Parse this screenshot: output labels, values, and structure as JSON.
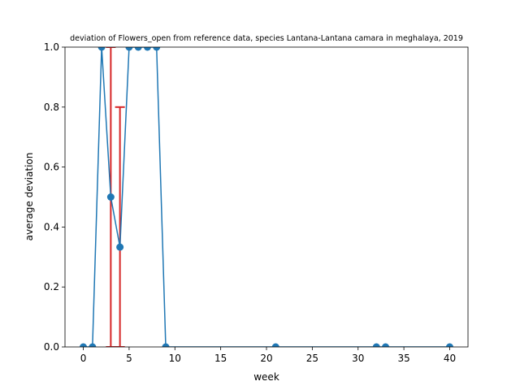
{
  "chart_data": {
    "type": "line",
    "title": "deviation of Flowers_open from reference data, species Lantana-Lantana camara in meghalaya, 2019",
    "xlabel": "week",
    "ylabel": "average deviation",
    "xlim": [
      -2,
      42
    ],
    "ylim": [
      0,
      1.0
    ],
    "xticks": [
      0,
      5,
      10,
      15,
      20,
      25,
      30,
      35,
      40
    ],
    "yticks": [
      0.0,
      0.2,
      0.4,
      0.6,
      0.8,
      1.0
    ],
    "xtick_labels": [
      "0",
      "5",
      "10",
      "15",
      "20",
      "25",
      "30",
      "35",
      "40"
    ],
    "ytick_labels": [
      "0.0",
      "0.2",
      "0.4",
      "0.6",
      "0.8",
      "1.0"
    ],
    "grid": false,
    "legend": "none",
    "series": [
      {
        "x": [
          0,
          1,
          2,
          3,
          4,
          5,
          6,
          7,
          8,
          9,
          21,
          32,
          33,
          40
        ],
        "y": [
          0,
          0,
          1.0,
          0.5,
          0.333,
          1.0,
          1.0,
          1.0,
          1.0,
          0,
          0,
          0,
          0,
          0
        ],
        "color": "#1f77b4"
      }
    ],
    "error_bars": [
      {
        "x": 3,
        "lower": 0.0,
        "upper": 1.0
      },
      {
        "x": 4,
        "lower": 0.0,
        "upper": 0.8
      }
    ],
    "error_color": "#d62728"
  }
}
